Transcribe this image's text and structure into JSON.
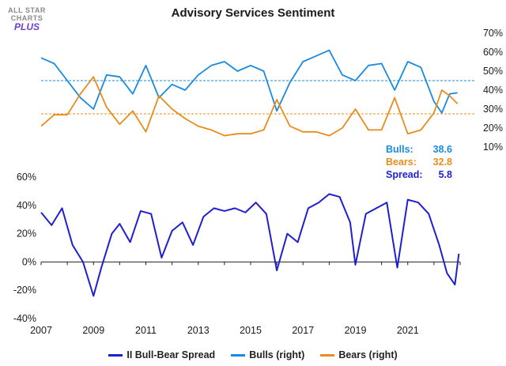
{
  "logo": {
    "line1": "ALL STAR",
    "line2": "CHARTS",
    "line3": "PLUS"
  },
  "colors": {
    "spread": "#1f1fd0",
    "bulls": "#1a8ae0",
    "bears": "#e88c1c",
    "bulls_stat": "#1a8ae0",
    "bears_stat": "#e88c1c",
    "spread_stat": "#1f1fd0"
  },
  "stats": [
    {
      "label": "Bulls:",
      "value": "38.6",
      "color_key": "bulls"
    },
    {
      "label": "Bears:",
      "value": "32.8",
      "color_key": "bears"
    },
    {
      "label": "Spread:",
      "value": "5.8",
      "color_key": "spread"
    }
  ],
  "legend": [
    {
      "label": "II Bull-Bear Spread",
      "color_key": "spread"
    },
    {
      "label": "Bulls (right)",
      "color_key": "bulls"
    },
    {
      "label": "Bears (right)",
      "color_key": "bears"
    }
  ],
  "chart_data": [
    {
      "type": "line",
      "title": "Advisory Services Sentiment",
      "y_axis": "right",
      "ylim": [
        10,
        70
      ],
      "yticks": [
        "70%",
        "60%",
        "50%",
        "40%",
        "30%",
        "20%",
        "10%"
      ],
      "ytick_values": [
        70,
        60,
        50,
        40,
        30,
        20,
        10
      ],
      "reference_lines": [
        {
          "series": "Bulls",
          "value": 45
        },
        {
          "series": "Bears",
          "value": 27.5
        }
      ],
      "x": [
        2007,
        2007.5,
        2008,
        2008.5,
        2009,
        2009.5,
        2010,
        2010.5,
        2011,
        2011.5,
        2012,
        2012.5,
        2013,
        2013.5,
        2014,
        2014.5,
        2015,
        2015.5,
        2016,
        2016.5,
        2017,
        2017.5,
        2018,
        2018.5,
        2019,
        2019.5,
        2020,
        2020.5,
        2021,
        2021.5,
        2022,
        2022.3,
        2022.6,
        2022.9
      ],
      "series": [
        {
          "name": "Bulls",
          "values": [
            57,
            54,
            45,
            36,
            30,
            48,
            47,
            38,
            53,
            36,
            43,
            40,
            48,
            53,
            55,
            50,
            53,
            50,
            29,
            44,
            55,
            58,
            61,
            48,
            45,
            53,
            54,
            40,
            55,
            52,
            34,
            28,
            38,
            38.6
          ]
        },
        {
          "name": "Bears",
          "values": [
            21,
            27,
            27,
            38,
            47,
            31,
            22,
            29,
            18,
            37,
            30,
            25,
            21,
            19,
            16,
            17,
            17,
            19,
            35,
            21,
            18,
            18,
            16,
            20,
            30,
            19,
            19,
            36,
            17,
            19,
            28,
            40,
            37,
            32.8
          ]
        }
      ]
    },
    {
      "type": "line",
      "ylim": [
        -40,
        60
      ],
      "yticks": [
        "60%",
        "40%",
        "20%",
        "0%",
        "-20%",
        "-40%"
      ],
      "ytick_values": [
        60,
        40,
        20,
        0,
        -20,
        -40
      ],
      "xlim": [
        2007,
        2023
      ],
      "xticks": [
        "2007",
        "2009",
        "2011",
        "2013",
        "2015",
        "2017",
        "2019",
        "2021"
      ],
      "xtick_values": [
        2007,
        2009,
        2011,
        2013,
        2015,
        2017,
        2019,
        2021
      ],
      "x": [
        2007,
        2007.4,
        2007.8,
        2008.2,
        2008.6,
        2009,
        2009.3,
        2009.7,
        2010,
        2010.4,
        2010.8,
        2011.2,
        2011.6,
        2012,
        2012.4,
        2012.8,
        2013.2,
        2013.6,
        2014,
        2014.4,
        2014.8,
        2015.2,
        2015.6,
        2016,
        2016.4,
        2016.8,
        2017.2,
        2017.6,
        2018,
        2018.4,
        2018.8,
        2019,
        2019.4,
        2019.8,
        2020.2,
        2020.6,
        2021,
        2021.4,
        2021.8,
        2022.2,
        2022.5,
        2022.8,
        2022.95
      ],
      "series": [
        {
          "name": "II Bull-Bear Spread",
          "values": [
            35,
            26,
            38,
            12,
            0,
            -24,
            -4,
            20,
            27,
            14,
            36,
            34,
            3,
            22,
            28,
            12,
            32,
            38,
            36,
            38,
            35,
            42,
            34,
            -6,
            20,
            14,
            38,
            42,
            48,
            46,
            28,
            -2,
            34,
            38,
            42,
            -4,
            44,
            42,
            34,
            12,
            -8,
            -16,
            5.8
          ]
        }
      ]
    }
  ]
}
